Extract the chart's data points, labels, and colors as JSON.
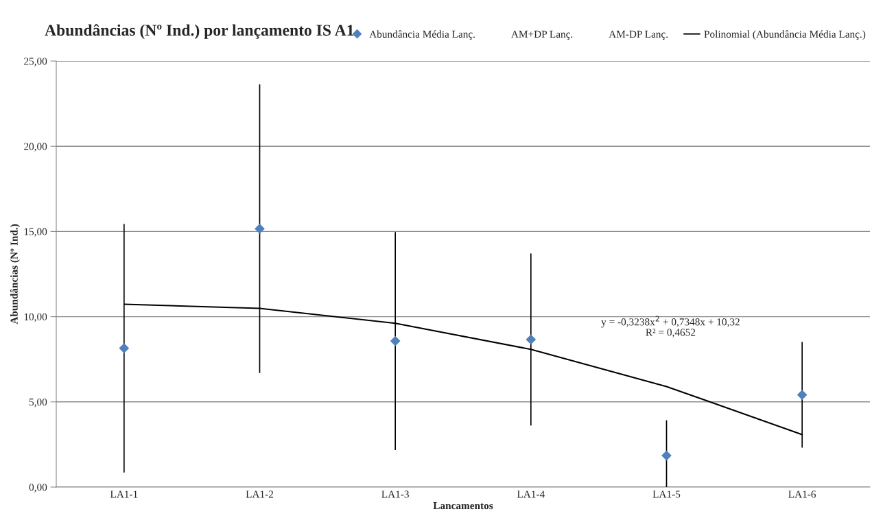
{
  "chart_data": {
    "type": "scatter",
    "title": "Abundâncias (Nº Ind.) por lançamento IS A1",
    "xlabel": "Lancamentos",
    "ylabel": "Abundâncias (Nº Ind.)",
    "categories": [
      "LA1-1",
      "LA1-2",
      "LA1-3",
      "LA1-4",
      "LA1-5",
      "LA1-6"
    ],
    "series": [
      {
        "name": "Abundância Média Lanç.",
        "color": "#4f81bd",
        "marker": "diamond",
        "values": [
          8.15,
          15.16,
          8.57,
          8.66,
          1.85,
          5.41
        ],
        "errors": [
          7.29,
          8.47,
          6.4,
          5.05,
          [
            0,
            3.92
          ],
          3.1
        ]
      },
      {
        "name": "AM+DP Lanç.",
        "type": "scatter",
        "color": "#000000",
        "marker": "none",
        "values": [
          null,
          null,
          null,
          null,
          null,
          null
        ]
      },
      {
        "name": "AM-DP Lanç.",
        "type": "scatter",
        "color": "#000000",
        "marker": "none",
        "values": [
          null,
          null,
          null,
          null,
          null,
          null
        ]
      },
      {
        "name": "Polinomial (Abundância Média Lanç.)",
        "type": "line",
        "color": "#000000",
        "marker": "none",
        "line_style": "solid",
        "values": [
          10.73,
          10.49,
          9.61,
          8.08,
          5.9,
          3.08
        ]
      }
    ],
    "annotations": [
      "y = -0,3238x$^{2}$ + 0,7348x + 10,32\nR² = 0,4652"
    ],
    "ylim": [
      0,
      25
    ],
    "yticks": [
      {
        "value": 0,
        "label": "0,00"
      },
      {
        "value": 5,
        "label": "5,00"
      },
      {
        "value": 10,
        "label": "10,00"
      },
      {
        "value": 15,
        "label": "15,00"
      },
      {
        "value": 20,
        "label": "20,00"
      },
      {
        "value": 25,
        "label": "25,00"
      }
    ],
    "grid": "y",
    "legend": "top right"
  }
}
